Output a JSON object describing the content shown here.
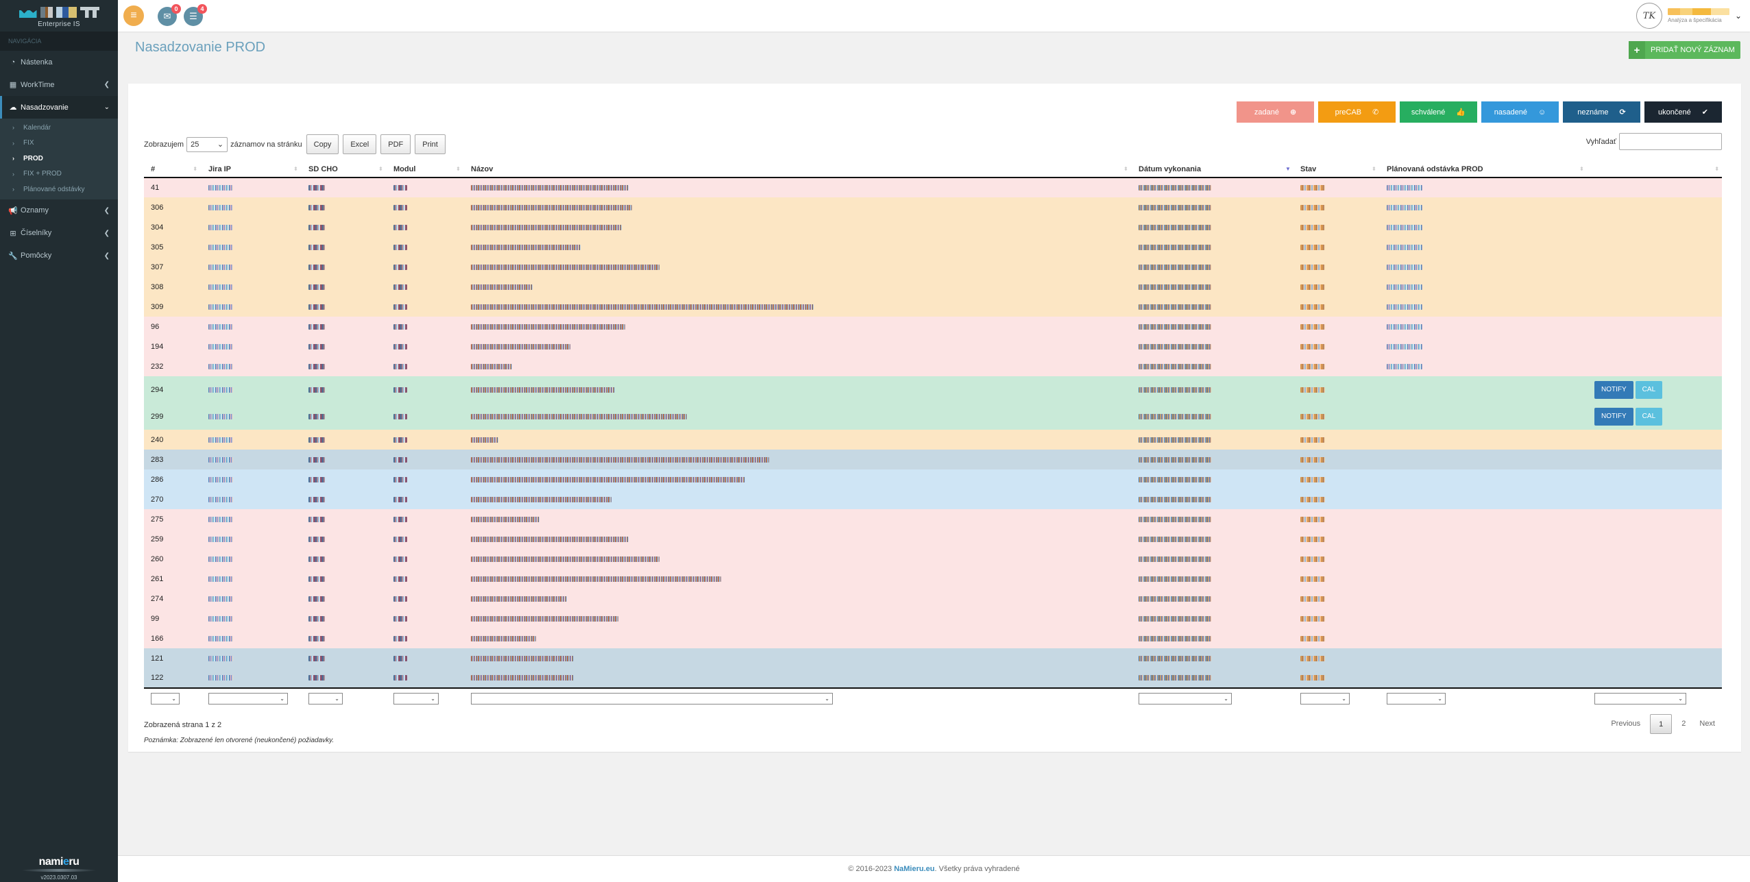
{
  "app": {
    "brand_sub": "Enterprise IS",
    "version": "v2023.0307.03",
    "footer_logo_a": "nami",
    "footer_logo_b": "e",
    "footer_logo_c": "ru"
  },
  "sidebar": {
    "section_header": "NAVIGÁCIA",
    "items": [
      {
        "label": "Nástenka",
        "icon": "dashboard-icon"
      },
      {
        "label": "WorkTime",
        "icon": "calendar-icon"
      },
      {
        "label": "Nasadzovanie",
        "icon": "cloud-upload-icon"
      },
      {
        "label": "Oznamy",
        "icon": "megaphone-icon"
      },
      {
        "label": "Číselníky",
        "icon": "table-icon"
      },
      {
        "label": "Pomôcky",
        "icon": "wrench-icon"
      }
    ],
    "submenu": [
      {
        "label": "Kalendár"
      },
      {
        "label": "FIX"
      },
      {
        "label": "PROD"
      },
      {
        "label": "FIX + PROD"
      },
      {
        "label": "Plánované odstávky"
      }
    ]
  },
  "topbar": {
    "messages_badge": "0",
    "tasks_badge": "4",
    "user_initials": "TK",
    "user_role": "Analýza a špecifikácia"
  },
  "page": {
    "title": "Nasadzovanie PROD",
    "add_button": "PRIDAŤ NOVÝ ZÁZNAM"
  },
  "status_filters": [
    {
      "label": "zadané",
      "color": "#f1948a",
      "icon": "⊕"
    },
    {
      "label": "preCAB",
      "color": "#f39c12",
      "icon": "✆"
    },
    {
      "label": "schválené",
      "color": "#27ae60",
      "icon": "👍"
    },
    {
      "label": "nasadené",
      "color": "#3498db",
      "icon": "☺"
    },
    {
      "label": "neznáme",
      "color": "#1f5f8b",
      "icon": "⟳"
    },
    {
      "label": "ukončené",
      "color": "#1b2631",
      "icon": "✔"
    }
  ],
  "toolbar": {
    "show_prefix": "Zobrazujem",
    "page_length": "25",
    "show_suffix": "záznamov na stránku",
    "copy": "Copy",
    "excel": "Excel",
    "pdf": "PDF",
    "print": "Print",
    "search_label": "Vyhľadať",
    "search_value": ""
  },
  "table": {
    "columns": [
      "#",
      "Jira IP",
      "SD CHO",
      "Modul",
      "Názov",
      "Dátum vykonania",
      "Stav",
      "Plánovaná odstávka PROD",
      ""
    ],
    "sorted_column": "Dátum vykonania",
    "rows": [
      {
        "id": "41",
        "color": "pink",
        "name_len": 230,
        "date": true,
        "plan": true,
        "actions": false
      },
      {
        "id": "306",
        "color": "orange",
        "name_len": 235,
        "date": true,
        "plan": true,
        "actions": false
      },
      {
        "id": "304",
        "color": "orange",
        "name_len": 220,
        "date": true,
        "plan": true,
        "actions": false
      },
      {
        "id": "305",
        "color": "orange",
        "name_len": 160,
        "date": true,
        "plan": true,
        "actions": false
      },
      {
        "id": "307",
        "color": "orange",
        "name_len": 275,
        "date": true,
        "plan": true,
        "actions": false
      },
      {
        "id": "308",
        "color": "orange",
        "name_len": 90,
        "date": true,
        "plan": true,
        "actions": false
      },
      {
        "id": "309",
        "color": "orange",
        "name_len": 500,
        "date": true,
        "plan": true,
        "actions": false
      },
      {
        "id": "96",
        "color": "pink",
        "name_len": 225,
        "date": true,
        "plan": true,
        "actions": false
      },
      {
        "id": "194",
        "color": "pink",
        "name_len": 145,
        "date": true,
        "plan": true,
        "actions": false
      },
      {
        "id": "232",
        "color": "pink",
        "name_len": 60,
        "date": true,
        "plan": true,
        "actions": false
      },
      {
        "id": "294",
        "color": "green",
        "name_len": 210,
        "date": true,
        "plan": false,
        "actions": true
      },
      {
        "id": "299",
        "color": "green",
        "name_len": 315,
        "date": true,
        "plan": false,
        "actions": true
      },
      {
        "id": "240",
        "color": "orange",
        "name_len": 40,
        "date": true,
        "plan": false,
        "actions": false
      },
      {
        "id": "283",
        "color": "steel",
        "name_len": 435,
        "date": true,
        "plan": false,
        "actions": false
      },
      {
        "id": "286",
        "color": "blue",
        "name_len": 400,
        "date": true,
        "plan": false,
        "actions": false
      },
      {
        "id": "270",
        "color": "blue",
        "name_len": 205,
        "date": true,
        "plan": false,
        "actions": false
      },
      {
        "id": "275",
        "color": "pink",
        "name_len": 100,
        "date": true,
        "plan": false,
        "actions": false
      },
      {
        "id": "259",
        "color": "pink",
        "name_len": 230,
        "date": true,
        "plan": false,
        "actions": false
      },
      {
        "id": "260",
        "color": "pink",
        "name_len": 275,
        "date": true,
        "plan": false,
        "actions": false
      },
      {
        "id": "261",
        "color": "pink",
        "name_len": 365,
        "date": true,
        "plan": false,
        "actions": false
      },
      {
        "id": "274",
        "color": "pink",
        "name_len": 140,
        "date": true,
        "plan": false,
        "actions": false
      },
      {
        "id": "99",
        "color": "pink",
        "name_len": 215,
        "date": true,
        "plan": false,
        "actions": false
      },
      {
        "id": "166",
        "color": "pink",
        "name_len": 95,
        "date": true,
        "plan": false,
        "actions": false
      },
      {
        "id": "121",
        "color": "steel",
        "name_len": 150,
        "date": true,
        "plan": false,
        "actions": false
      },
      {
        "id": "122",
        "color": "steel",
        "name_len": 150,
        "date": true,
        "plan": false,
        "actions": false
      }
    ],
    "redacted_note": "cell contents pixelated in source",
    "notify_label": "NOTIFY",
    "cal_label": "CAL"
  },
  "pagination": {
    "info": "Zobrazená strana 1 z 2",
    "note": "Poznámka: Zobrazené len otvorené (neukončené) požiadavky.",
    "previous": "Previous",
    "pages": [
      "1",
      "2"
    ],
    "current": "1",
    "next": "Next"
  },
  "footer": {
    "prefix": "© 2016-2023 ",
    "link": "NaMieru.eu",
    "suffix": ". Všetky práva vyhradené"
  }
}
